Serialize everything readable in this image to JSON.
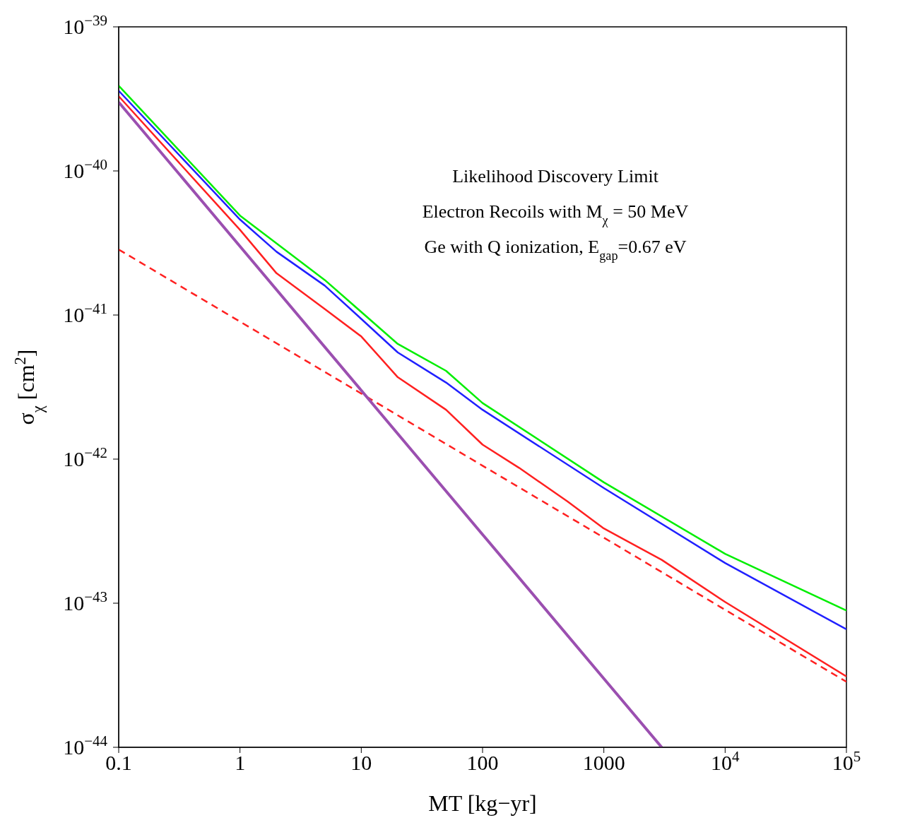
{
  "chart_data": {
    "type": "line",
    "xlabel": "MT [kg−yr]",
    "ylabel": "σ$_{χ}$ [cm$^{2}$]",
    "annotations": [
      "Likelihood Discovery Limit",
      "Electron Recoils with M$_{χ}$ = 50 MeV",
      "Ge with Q ionization, E$_{gap}$=0.67 eV"
    ],
    "log": "xy",
    "xlim": [
      0.1,
      100000
    ],
    "ylim": [
      1e-44,
      1e-39
    ],
    "xticks": [
      0.1,
      1,
      10,
      100,
      1000,
      {
        "value": 10000,
        "label": "10$^{4}$"
      },
      {
        "value": 100000,
        "label": "10$^{5}$"
      }
    ],
    "yticks": [
      {
        "value": 1e-44,
        "label": "10$^{−44}$"
      },
      {
        "value": 1e-43,
        "label": "10$^{−43}$"
      },
      {
        "value": 1e-42,
        "label": "10$^{−42}$"
      },
      {
        "value": 1e-41,
        "label": "10$^{−41}$"
      },
      {
        "value": 1e-40,
        "label": "10$^{−40}$"
      },
      {
        "value": 1e-39,
        "label": "10$^{−39}$"
      }
    ],
    "grid": false,
    "legend": false,
    "marker": "none",
    "series": [
      {
        "color": "#00ee00",
        "x": [
          0.1,
          1,
          5,
          20,
          50,
          100,
          1000,
          10000,
          100000
        ],
        "values": [
          3.9e-40,
          4.9e-41,
          1.75e-41,
          6.3e-42,
          4.1e-42,
          2.45e-42,
          6.9e-43,
          2.2e-43,
          8.9e-44
        ]
      },
      {
        "color": "#2020ff",
        "x": [
          0.1,
          1,
          2,
          5,
          10,
          20,
          50,
          100,
          1000,
          10000,
          100000
        ],
        "values": [
          3.6e-40,
          4.6e-41,
          2.75e-41,
          1.6e-41,
          9.4e-42,
          5.5e-42,
          3.4e-42,
          2.2e-42,
          6.3e-43,
          1.9e-43,
          6.6e-44
        ]
      },
      {
        "color": "#ff2020",
        "x": [
          0.1,
          1,
          2,
          5,
          10,
          20,
          50,
          100,
          200,
          500,
          1000,
          3000,
          10000,
          100000
        ],
        "values": [
          3.3e-40,
          3.9e-41,
          1.95e-41,
          1.1e-41,
          7.1e-42,
          3.7e-42,
          2.2e-42,
          1.26e-42,
          8.7e-43,
          5.1e-43,
          3.3e-43,
          2e-43,
          1.02e-43,
          3.1e-44
        ]
      },
      {
        "color": "#ff2020",
        "line_style": "dashed",
        "x": [
          0.1,
          1,
          10,
          100,
          1000,
          10000,
          100000
        ],
        "values": [
          2.85e-41,
          9e-42,
          2.85e-42,
          9e-43,
          2.85e-43,
          9e-44,
          2.85e-44
        ]
      },
      {
        "color": "#9b4fb0",
        "x": [
          0.1,
          1,
          10,
          100,
          1000,
          3000
        ],
        "values": [
          3e-40,
          3e-41,
          3e-42,
          3e-43,
          3e-44,
          1e-44
        ]
      }
    ]
  }
}
